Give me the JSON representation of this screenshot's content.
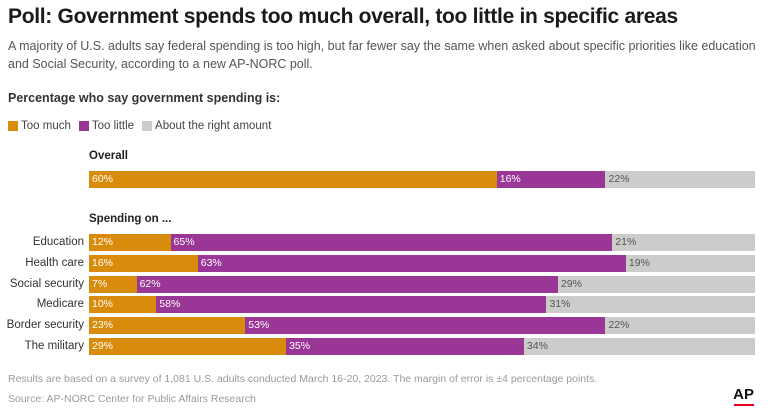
{
  "title": "Poll: Government spends too much overall, too little in specific areas",
  "subtitle": "A majority of U.S. adults say federal spending is too high, but far fewer say the same when asked about specific priorities like education and Social Security, according to a new AP-NORC poll.",
  "section_label": "Percentage who say government spending is:",
  "legend": [
    {
      "label": "Too much",
      "color": "#d98b0b"
    },
    {
      "label": "Too little",
      "color": "#9a3796"
    },
    {
      "label": "About the right amount",
      "color": "#cccccb"
    }
  ],
  "footnote": "Results are based on a survey of 1,081 U.S. adults conducted March 16-20, 2023. The margin of error is ±4 percentage points.",
  "source": "Source: AP-NORC Center for Public Affairs Research",
  "logo": "AP",
  "chart_data": {
    "type": "bar",
    "orientation": "horizontal",
    "stacked": true,
    "title": "Poll: Government spends too much overall, too little in specific areas",
    "legend_position": "top-left",
    "xlim": [
      0,
      100
    ],
    "series": [
      {
        "name": "Too much",
        "color": "#d98b0b"
      },
      {
        "name": "Too little",
        "color": "#9a3796"
      },
      {
        "name": "About the right amount",
        "color": "#cccccb"
      }
    ],
    "groups": [
      {
        "title": "Overall",
        "rows": [
          {
            "label": "",
            "values": [
              60,
              16,
              22
            ]
          }
        ]
      },
      {
        "title": "Spending on ...",
        "rows": [
          {
            "label": "Education",
            "values": [
              12,
              65,
              21
            ]
          },
          {
            "label": "Health care",
            "values": [
              16,
              63,
              19
            ]
          },
          {
            "label": "Social security",
            "values": [
              7,
              62,
              29
            ]
          },
          {
            "label": "Medicare",
            "values": [
              10,
              58,
              31
            ]
          },
          {
            "label": "Border security",
            "values": [
              23,
              53,
              22
            ]
          },
          {
            "label": "The military",
            "values": [
              29,
              35,
              34
            ]
          }
        ]
      }
    ]
  }
}
